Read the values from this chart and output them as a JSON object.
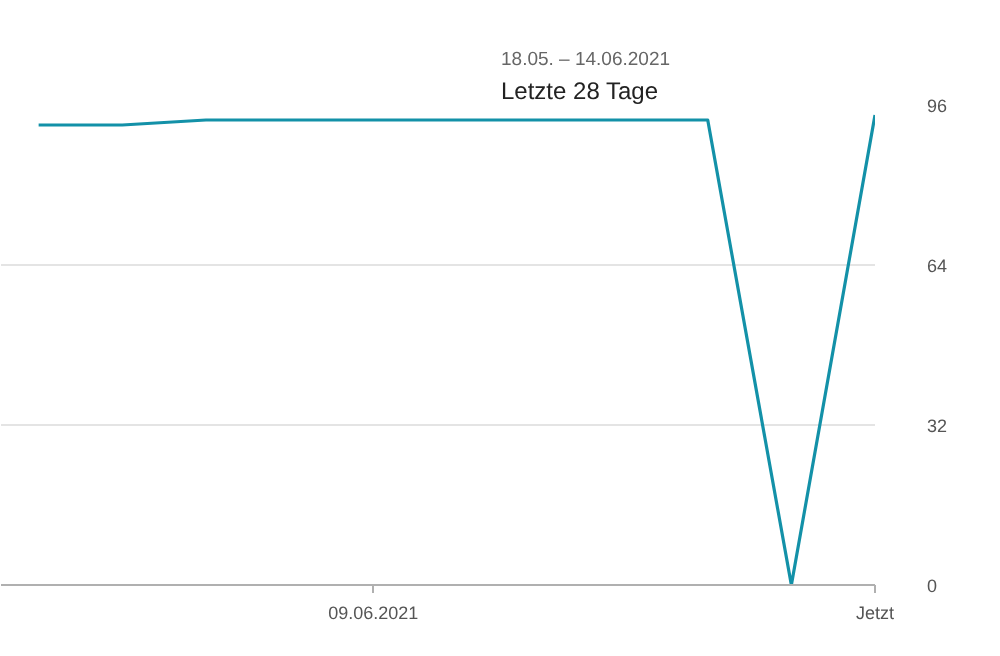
{
  "chart_data": {
    "type": "line",
    "title": "Letzte 28 Tage",
    "subtitle": "18.05. – 14.06.2021",
    "categories": [
      null,
      null,
      null,
      null,
      "09.06.2021",
      null,
      null,
      null,
      null,
      null,
      "Jetzt"
    ],
    "series": [
      {
        "color": "#1391a8",
        "values": [
          92,
          92,
          93,
          93,
          93,
          93,
          93,
          93,
          93,
          0,
          94
        ]
      }
    ],
    "ylim": [
      0,
      96
    ],
    "yticks": [
      0,
      32,
      64,
      96
    ],
    "grid": "y",
    "marker": "none",
    "line_style": "solid"
  }
}
